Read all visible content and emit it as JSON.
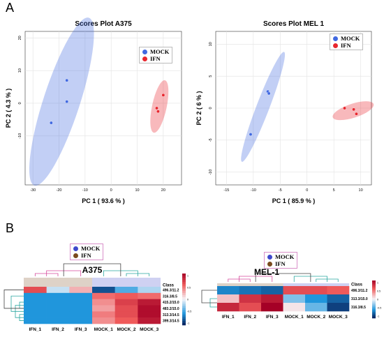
{
  "panels": {
    "a": "A",
    "b": "B"
  },
  "chart_data": [
    {
      "type": "scatter",
      "title": "Scores Plot A375",
      "xlabel": "PC 1 ( 93.6 % )",
      "ylabel": "PC 2 ( 4.3 % )",
      "xlim": [
        -33,
        27
      ],
      "ylim": [
        -25,
        22
      ],
      "xticks": [
        -30,
        -20,
        -10,
        0,
        10,
        20
      ],
      "yticks": [
        -10,
        0,
        10,
        20
      ],
      "grid": true,
      "legend_position": "top-right",
      "series": [
        {
          "name": "MOCK",
          "color": "#4169e1",
          "points": [
            [
              -17,
              7
            ],
            [
              -17,
              0.5
            ],
            [
              -23,
              -6
            ]
          ],
          "ellipse": {
            "center": [
              -19,
              0.5
            ],
            "rx": 7,
            "ry": 27,
            "angle": 18
          }
        },
        {
          "name": "IFN",
          "color": "#e8262e",
          "points": [
            [
              20,
              2.5
            ],
            [
              17.5,
              -1.5
            ],
            [
              18,
              -2.5
            ]
          ],
          "ellipse": {
            "center": [
              18.5,
              -1
            ],
            "rx": 2.8,
            "ry": 8.2,
            "angle": 12
          }
        }
      ]
    },
    {
      "type": "scatter",
      "title": "Scores Plot MEL 1",
      "xlabel": "PC 1 ( 85.9 % )",
      "ylabel": "PC 2 ( 6 % )",
      "xlim": [
        -17,
        12
      ],
      "ylim": [
        -12,
        12
      ],
      "xticks": [
        -15,
        -10,
        -5,
        0,
        5,
        10
      ],
      "yticks": [
        -10,
        -5,
        0,
        5,
        10
      ],
      "grid": true,
      "legend_position": "top-right",
      "series": [
        {
          "name": "MOCK",
          "color": "#4169e1",
          "points": [
            [
              -7.3,
              2.6
            ],
            [
              -7.1,
              2.3
            ],
            [
              -10.5,
              -4.1
            ]
          ],
          "ellipse": {
            "center": [
              -8.2,
              0.2
            ],
            "rx": 1.2,
            "ry": 9.2,
            "angle": 21
          }
        },
        {
          "name": "IFN",
          "color": "#e8262e",
          "points": [
            [
              7,
              0
            ],
            [
              8.7,
              -0.2
            ],
            [
              9.2,
              -0.9
            ]
          ],
          "ellipse": {
            "center": [
              8.6,
              -0.4
            ],
            "rx": 4,
            "ry": 1.1,
            "angle": -18
          }
        }
      ]
    },
    {
      "type": "heatmap",
      "title": "A375",
      "legend": [
        {
          "name": "MOCK",
          "color": "#3f48cc"
        },
        {
          "name": "IFN",
          "color": "#7a4a1e"
        }
      ],
      "columns": [
        "IFN_1",
        "IFN_2",
        "IFN_3",
        "MOCK_1",
        "MOCK_2",
        "MOCK_3"
      ],
      "class_label": "Class",
      "class_colors": [
        "#7a4a1e",
        "#7a4a1e",
        "#7a4a1e",
        "#3f48cc",
        "#3f48cc",
        "#3f48cc"
      ],
      "rows": [
        "496.3/11.2",
        "316.3/8.5",
        "415.2/15.0",
        "483.2/15.0",
        "313.3/14.5",
        "399.3/14.5"
      ],
      "values": [
        [
          1.0,
          -0.2,
          0.4,
          -1.3,
          -0.7,
          -0.3
        ],
        [
          -0.9,
          -0.9,
          -0.9,
          0.8,
          0.9,
          0.8
        ],
        [
          -0.9,
          -0.9,
          -0.9,
          0.6,
          1.1,
          1.4
        ],
        [
          -0.9,
          -0.9,
          -0.9,
          0.5,
          1.0,
          1.5
        ],
        [
          -0.9,
          -0.9,
          -0.9,
          0.7,
          1.0,
          1.5
        ],
        [
          -0.9,
          -0.9,
          -0.9,
          0.6,
          0.9,
          1.4
        ]
      ],
      "colorbar_ticks": [
        "1",
        "0.5",
        "0",
        "-0.5",
        "-1"
      ]
    },
    {
      "type": "heatmap",
      "title": "MEL-1",
      "legend": [
        {
          "name": "MOCK",
          "color": "#3f48cc"
        },
        {
          "name": "IFN",
          "color": "#7a4a1e"
        }
      ],
      "columns": [
        "IFN_1",
        "IFN_2",
        "IFN_3",
        "MOCK_1",
        "MOCK_2",
        "MOCK_3"
      ],
      "class_label": "Class",
      "class_colors": [
        "#7a4a1e",
        "#7a4a1e",
        "#7a4a1e",
        "#3f48cc",
        "#3f48cc",
        "#3f48cc"
      ],
      "rows": [
        "496.3/11.2",
        "313.3/15.0",
        "316.3/8.5"
      ],
      "values": [
        [
          -1.0,
          -1.1,
          -1.2,
          1.0,
          1.0,
          0.9
        ],
        [
          0.3,
          1.2,
          1.4,
          -0.5,
          -0.9,
          -1.2
        ],
        [
          1.3,
          1.0,
          1.6,
          0.1,
          -0.6,
          -1.4
        ]
      ],
      "colorbar_ticks": [
        "1",
        "0.5",
        "0",
        "-0.5",
        "-1"
      ]
    }
  ]
}
